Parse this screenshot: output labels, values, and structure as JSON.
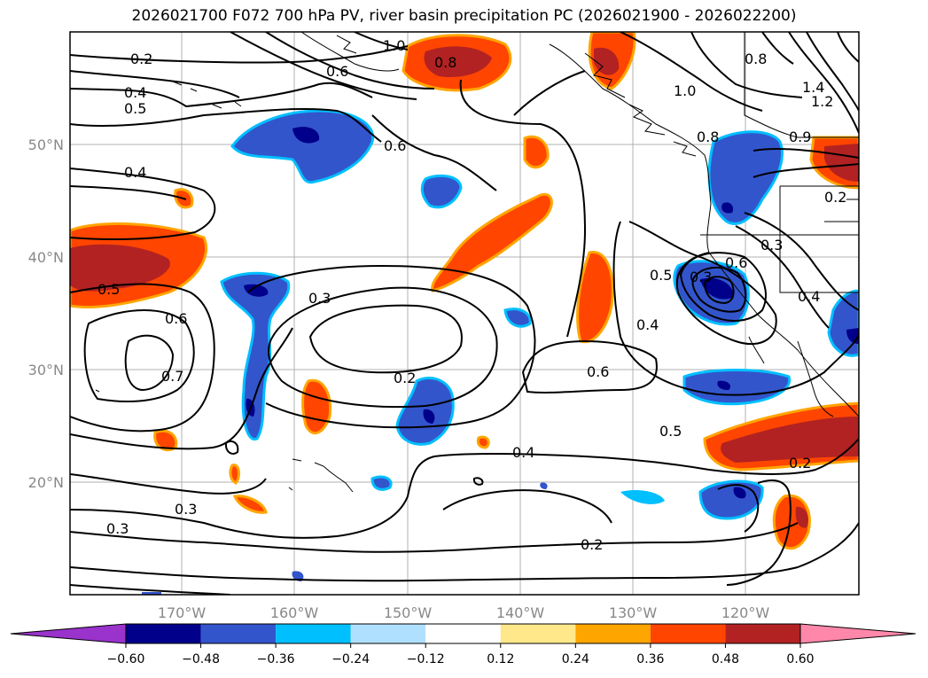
{
  "title": "2026021700 F072 700 hPa PV, river basin precipitation PC (2026021900 - 2026022200)",
  "lat_labels": [
    "50°N",
    "40°N",
    "30°N",
    "20°N"
  ],
  "lon_labels": [
    "170°W",
    "160°W",
    "150°W",
    "140°W",
    "130°W",
    "120°W"
  ],
  "colorbar": {
    "colors": [
      "#9933cc",
      "#00008b",
      "#3355cc",
      "#00bfff",
      "#b0e0ff",
      "#ffffff",
      "#ffe88a",
      "#ffa500",
      "#ff4500",
      "#b22222",
      "#ff88aa"
    ],
    "tick_labels": [
      "−0.60",
      "−0.48",
      "−0.36",
      "−0.24",
      "−0.12",
      "0.12",
      "0.24",
      "0.36",
      "0.48",
      "0.60"
    ]
  },
  "contour_labels": [
    "0.2",
    "0.4",
    "0.5",
    "0.4",
    "1.0",
    "0.6",
    "0.8",
    "1.0",
    "0.8",
    "1.4",
    "1.2",
    "0.8",
    "0.9",
    "0.6",
    "0.2",
    "0.3",
    "0.6",
    "0.5",
    "0.3",
    "0.4",
    "0.5",
    "0.6",
    "0.7",
    "0.3",
    "0.2",
    "0.4",
    "0.5",
    "0.6",
    "0.4",
    "0.3",
    "0.3",
    "0.2",
    "0.2"
  ]
}
